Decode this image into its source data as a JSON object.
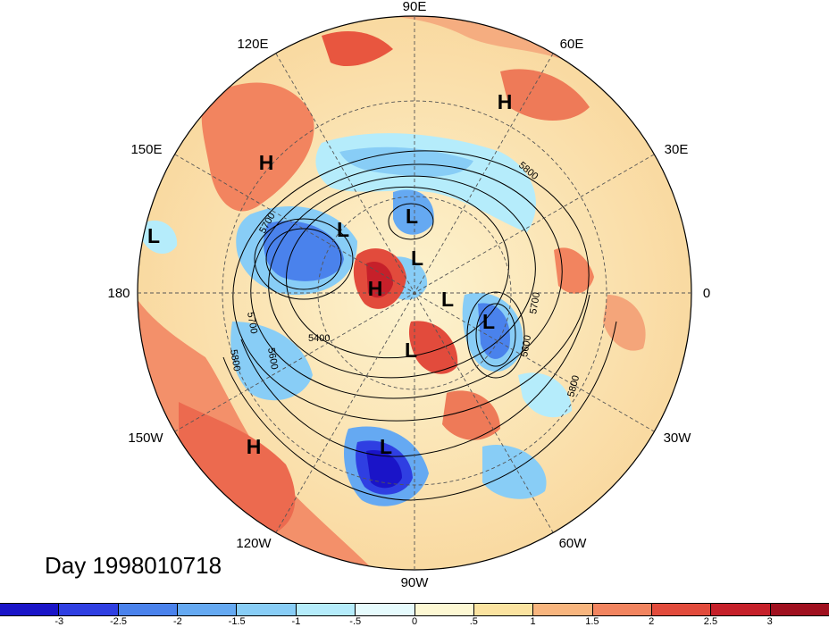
{
  "map": {
    "projection": "polar stereographic, Northern Hemisphere",
    "date_label": "Day 1998010718",
    "longitude_labels": [
      "90E",
      "60E",
      "30E",
      "0",
      "30W",
      "60W",
      "90W",
      "120W",
      "150W",
      "180",
      "150E",
      "120E"
    ],
    "contour_labels": [
      "5700",
      "5700",
      "5600",
      "5400",
      "5800",
      "5600",
      "5800",
      "5700",
      "5800"
    ],
    "pressure_systems": [
      {
        "type": "H",
        "region": "Siberia"
      },
      {
        "type": "H",
        "region": "Northeast Asia"
      },
      {
        "type": "H",
        "region": "North Pole"
      },
      {
        "type": "H",
        "region": "Northeast Pacific"
      },
      {
        "type": "L",
        "region": "Bering Sea"
      },
      {
        "type": "L",
        "region": "Western Pacific"
      },
      {
        "type": "L",
        "region": "Arctic Siberia"
      },
      {
        "type": "L",
        "region": "Arctic"
      },
      {
        "type": "L",
        "region": "Greenland"
      },
      {
        "type": "L",
        "region": "North Atlantic"
      },
      {
        "type": "L",
        "region": "Canada"
      },
      {
        "type": "L",
        "region": "Central United States"
      }
    ]
  },
  "colorbar": {
    "tick_labels": [
      "-3",
      "-2.5",
      "-2",
      "-1.5",
      "-1",
      "-.5",
      "0",
      ".5",
      "1",
      "1.5",
      "2",
      "2.5",
      "3"
    ],
    "colors": [
      "#1a14c8",
      "#2f3fe2",
      "#4a82ec",
      "#65a9f2",
      "#88cdf6",
      "#b5ecfb",
      "#e6fbfd",
      "#fdf8d3",
      "#fbe3a0",
      "#f8b57e",
      "#f2845f",
      "#e24b3c",
      "#c6202a",
      "#a0101f"
    ]
  }
}
